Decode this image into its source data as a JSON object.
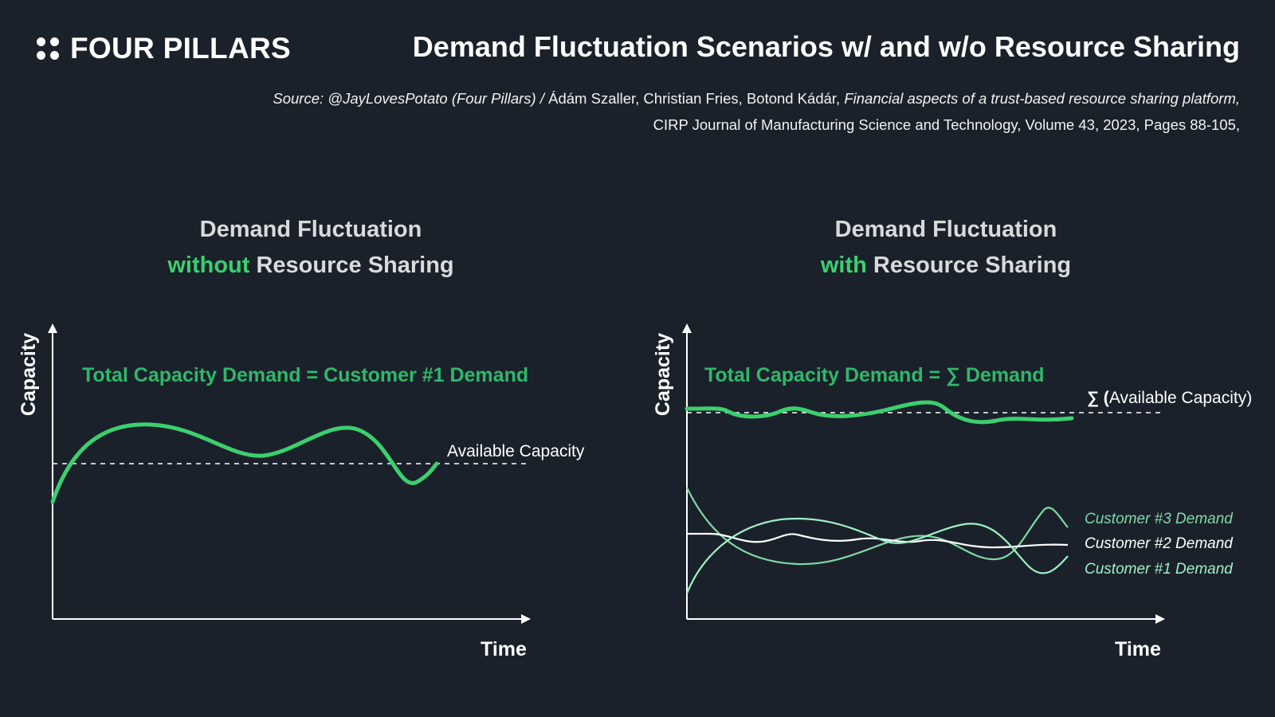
{
  "brand": {
    "name": "FOUR PILLARS"
  },
  "header": {
    "title": "Demand Fluctuation Scenarios w/ and w/o Resource Sharing",
    "source_prefix": "Source: @JayLovesPotato (Four Pillars) / ",
    "source_authors": "Ádám Szaller, Christian Fries, Botond Kádár, ",
    "source_paper": "Financial aspects of a trust-based resource sharing platform,",
    "source_journal": "CIRP Journal of Manufacturing Science and Technology, Volume 43, 2023, Pages 88-105,"
  },
  "left_panel": {
    "title_line1": "Demand Fluctuation",
    "title_accent": "without",
    "title_rest": " Resource Sharing",
    "y_axis_label": "Capacity",
    "x_axis_label": "Time",
    "formula": "Total Capacity Demand = Customer #1 Demand",
    "capacity_label": "Available Capacity"
  },
  "right_panel": {
    "title_line1": "Demand Fluctuation",
    "title_accent": "with",
    "title_rest": " Resource Sharing",
    "y_axis_label": "Capacity",
    "x_axis_label": "Time",
    "formula": "Total Capacity Demand = ∑ Demand",
    "capacity_label_sigma": "∑ (",
    "capacity_label": "Available Capacity)",
    "customers": [
      {
        "label": "Customer #3 Demand",
        "color": "#7ed8a4"
      },
      {
        "label": "Customer #2 Demand",
        "color": "#ffffff"
      },
      {
        "label": "Customer #1 Demand",
        "color": "#9ff0c4"
      }
    ]
  },
  "colors": {
    "background": "#1b212b",
    "accent": "#3ccf6e",
    "formula": "#2fb86a"
  }
}
